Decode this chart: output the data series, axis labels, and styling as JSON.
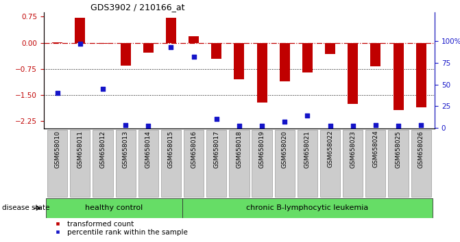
{
  "title": "GDS3902 / 210166_at",
  "samples": [
    "GSM658010",
    "GSM658011",
    "GSM658012",
    "GSM658013",
    "GSM658014",
    "GSM658015",
    "GSM658016",
    "GSM658017",
    "GSM658018",
    "GSM658019",
    "GSM658020",
    "GSM658021",
    "GSM658022",
    "GSM658023",
    "GSM658024",
    "GSM658025",
    "GSM658026"
  ],
  "red_values": [
    0.02,
    0.72,
    -0.02,
    -0.65,
    -0.28,
    0.72,
    0.18,
    -0.45,
    -1.05,
    -1.72,
    -1.1,
    -0.85,
    -0.32,
    -1.75,
    -0.68,
    -1.92,
    -1.85
  ],
  "blue_values": [
    40,
    97,
    45,
    3,
    2,
    93,
    82,
    10,
    2,
    2,
    7,
    14,
    2,
    2,
    3,
    2,
    3
  ],
  "ylim_left": [
    -2.45,
    0.88
  ],
  "ylim_right": [
    -0.5,
    133.8
  ],
  "yticks_left": [
    0.75,
    0.0,
    -0.75,
    -1.5,
    -2.25
  ],
  "yticks_right_vals": [
    100,
    75,
    50,
    25,
    0
  ],
  "yticks_right_labels": [
    "100%",
    "75",
    "50",
    "25",
    "0"
  ],
  "hline_y": 0.0,
  "dotted_lines": [
    -0.75,
    -1.5
  ],
  "healthy_count": 6,
  "red_bar_color": "#c00000",
  "blue_marker_color": "#1414c8",
  "dashed_line_color": "#c00000",
  "healthy_color": "#66dd66",
  "leukemia_color": "#66dd66",
  "healthy_label": "healthy control",
  "leukemia_label": "chronic B-lymphocytic leukemia",
  "legend_red": "transformed count",
  "legend_blue": "percentile rank within the sample",
  "disease_state_label": "disease state",
  "bar_width": 0.45,
  "label_box_color": "#cccccc",
  "title_fontsize": 9,
  "tick_fontsize": 6.5,
  "ann_fontsize": 8,
  "legend_fontsize": 7.5
}
